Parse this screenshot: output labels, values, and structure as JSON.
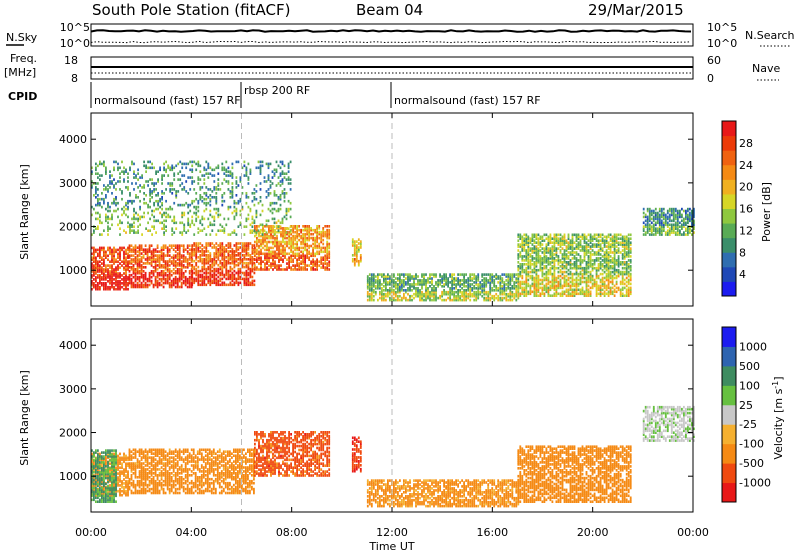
{
  "header": {
    "title": "South Pole Station (fitACF)",
    "beam": "Beam 04",
    "date": "29/Mar/2015"
  },
  "top_panels": {
    "nsky_label": "N.Sky",
    "nsearch_label": "N.Search",
    "freq_label_line1": "Freq.",
    "freq_label_line2": "[MHz]",
    "nave_label": "Nave",
    "cpid_label": "CPID",
    "nsky_ticks": [
      "10^5",
      "10^0"
    ],
    "nsearch_ticks": [
      "10^5",
      "10^0"
    ],
    "freq_ticks": [
      "18",
      "8"
    ],
    "nave_ticks": [
      "60",
      "0"
    ]
  },
  "cpid_segments": [
    {
      "label": "normalsound (fast) 157 RF",
      "start": 0,
      "end": 6
    },
    {
      "label": "rbsp 200 RF",
      "start": 6,
      "end": 12
    },
    {
      "label": "normalsound (fast) 157 RF",
      "start": 12,
      "end": 24
    }
  ],
  "chart_data": [
    {
      "type": "heatmap",
      "name": "power",
      "ylabel": "Slant Range [km]",
      "xlim": [
        0,
        24
      ],
      "ylim": [
        180,
        4600
      ],
      "yticks": [
        1000,
        2000,
        3000,
        4000
      ],
      "colorbar": {
        "label": "Power [dB]",
        "range": [
          0,
          32
        ],
        "ticks": [
          "4",
          "8",
          "12",
          "16",
          "20",
          "24",
          "28"
        ],
        "colors": [
          "#1c1cf0",
          "#1f48b6",
          "#2f6eb0",
          "#3a8e6a",
          "#59ab55",
          "#8fc83f",
          "#d6d626",
          "#f0b020",
          "#f58a14",
          "#f06210",
          "#ec3a08",
          "#e81818"
        ]
      },
      "bands": [
        {
          "t0": 0.0,
          "t1": 1.5,
          "r0": 550,
          "r1": 1500,
          "value": 27
        },
        {
          "t0": 1.5,
          "t1": 4.0,
          "r0": 600,
          "r1": 1550,
          "value": 26
        },
        {
          "t0": 4.0,
          "t1": 6.5,
          "r0": 650,
          "r1": 1600,
          "value": 25
        },
        {
          "t0": 6.5,
          "t1": 9.5,
          "r0": 1000,
          "r1": 2000,
          "value": 22
        },
        {
          "t0": 10.4,
          "t1": 10.8,
          "r0": 1100,
          "r1": 1700,
          "value": 18
        },
        {
          "t0": 11.0,
          "t1": 17.0,
          "r0": 300,
          "r1": 900,
          "value": 12
        },
        {
          "t0": 17.0,
          "t1": 21.5,
          "r0": 400,
          "r1": 1800,
          "value": 14
        },
        {
          "t0": 22.0,
          "t1": 24.0,
          "r0": 1800,
          "r1": 2400,
          "value": 9
        },
        {
          "t0": 0.0,
          "t1": 8.0,
          "r0": 1800,
          "r1": 3500,
          "value": 10
        }
      ]
    },
    {
      "type": "heatmap",
      "name": "velocity",
      "ylabel": "Slant Range [km]",
      "xlabel": "Time UT",
      "xlim": [
        0,
        24
      ],
      "ylim": [
        180,
        4600
      ],
      "yticks": [
        1000,
        2000,
        3000,
        4000
      ],
      "xticks": [
        "00:00",
        "04:00",
        "08:00",
        "12:00",
        "16:00",
        "20:00",
        "00:00"
      ],
      "colorbar": {
        "label": "Velocity [m s^-1]",
        "ticks": [
          "-1000",
          "-500",
          "-100",
          "-25",
          "25",
          "100",
          "500",
          "1000"
        ],
        "colors": [
          "#e81818",
          "#f04a10",
          "#f58a14",
          "#f5b030",
          "#c8c8c8",
          "#66c040",
          "#3e8c60",
          "#2e64b0",
          "#1c1cf0"
        ]
      },
      "bands": [
        {
          "t0": 0.0,
          "t1": 1.5,
          "r0": 550,
          "r1": 1500,
          "value": -150
        },
        {
          "t0": 1.5,
          "t1": 6.5,
          "r0": 600,
          "r1": 1600,
          "value": -200
        },
        {
          "t0": 6.5,
          "t1": 9.5,
          "r0": 1000,
          "r1": 2000,
          "value": -700
        },
        {
          "t0": 10.4,
          "t1": 10.8,
          "r0": 1100,
          "r1": 1900,
          "value": -900
        },
        {
          "t0": 11.0,
          "t1": 17.0,
          "r0": 300,
          "r1": 900,
          "value": -150
        },
        {
          "t0": 17.0,
          "t1": 21.5,
          "r0": 400,
          "r1": 1700,
          "value": -300
        },
        {
          "t0": 22.0,
          "t1": 24.0,
          "r0": 1800,
          "r1": 2600,
          "value": 10
        },
        {
          "t0": 0.0,
          "t1": 1.0,
          "r0": 400,
          "r1": 1600,
          "value": 120
        }
      ]
    }
  ]
}
